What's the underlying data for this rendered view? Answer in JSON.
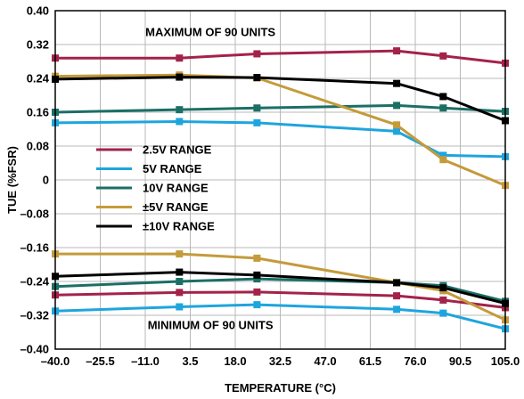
{
  "chart_data": {
    "type": "line",
    "xlabel": "TEMPERATURE (°C)",
    "ylabel": "TUE (%FSR)",
    "xlim": [
      -40,
      105
    ],
    "ylim": [
      -0.4,
      0.4
    ],
    "x_ticks": [
      "–40.0",
      "–25.5",
      "–11.0",
      "3.5",
      "18.0",
      "32.5",
      "47.0",
      "61.5",
      "76.0",
      "90.5",
      "105.0"
    ],
    "y_ticks": [
      "0.40",
      "0.32",
      "0.24",
      "0.16",
      "0.08",
      "0",
      "–0.08",
      "–0.16",
      "–0.24",
      "–0.32",
      "–0.40"
    ],
    "grid": true,
    "legend_position": "middle-left",
    "annotations": [
      "MAXIMUM OF 90 UNITS",
      "MINIMUM OF 90 UNITS"
    ],
    "x": [
      -40,
      0,
      25,
      70,
      85,
      105
    ],
    "series": [
      {
        "name": "2.5V RANGE",
        "color": "#a3224a",
        "group": "max",
        "values": [
          0.288,
          0.288,
          0.298,
          0.305,
          0.293,
          0.276
        ]
      },
      {
        "name": "5V RANGE",
        "color": "#1ea5dd",
        "group": "max",
        "values": [
          0.135,
          0.138,
          0.135,
          0.115,
          0.058,
          0.055
        ]
      },
      {
        "name": "10V RANGE",
        "color": "#1b6f65",
        "group": "max",
        "values": [
          0.16,
          0.166,
          0.17,
          0.176,
          0.17,
          0.162
        ]
      },
      {
        "name": "±5V RANGE",
        "color": "#c49a3a",
        "group": "max",
        "values": [
          0.245,
          0.248,
          0.241,
          0.13,
          0.048,
          -0.013
        ]
      },
      {
        "name": "±10V RANGE",
        "color": "#000000",
        "group": "max",
        "values": [
          0.238,
          0.243,
          0.242,
          0.228,
          0.197,
          0.14
        ]
      },
      {
        "name": "2.5V RANGE",
        "color": "#a3224a",
        "group": "min",
        "values": [
          -0.272,
          -0.266,
          -0.265,
          -0.274,
          -0.284,
          -0.302
        ]
      },
      {
        "name": "5V RANGE",
        "color": "#1ea5dd",
        "group": "min",
        "values": [
          -0.31,
          -0.3,
          -0.295,
          -0.306,
          -0.315,
          -0.352
        ]
      },
      {
        "name": "10V RANGE",
        "color": "#1b6f65",
        "group": "min",
        "values": [
          -0.252,
          -0.24,
          -0.234,
          -0.243,
          -0.25,
          -0.287
        ]
      },
      {
        "name": "±5V RANGE",
        "color": "#c49a3a",
        "group": "min",
        "values": [
          -0.175,
          -0.175,
          -0.185,
          -0.243,
          -0.262,
          -0.331
        ]
      },
      {
        "name": "±10V RANGE",
        "color": "#000000",
        "group": "min",
        "values": [
          -0.228,
          -0.218,
          -0.225,
          -0.243,
          -0.255,
          -0.292
        ]
      }
    ]
  }
}
